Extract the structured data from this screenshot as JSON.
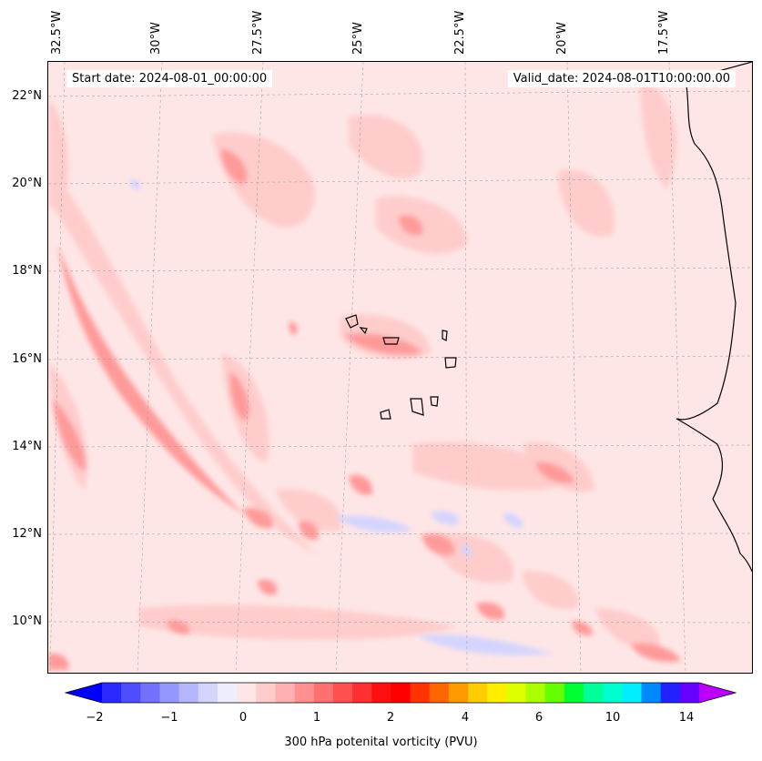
{
  "header": {
    "start_date": "Start date: 2024-08-01_00:00:00",
    "valid_date": "Valid_date: 2024-08-01T10:00:00.00"
  },
  "axes": {
    "lon_labels": [
      "32.5°W",
      "30°W",
      "27.5°W",
      "25°W",
      "22.5°W",
      "20°W",
      "17.5°W"
    ],
    "lat_labels": [
      "22°N",
      "20°N",
      "18°N",
      "16°N",
      "14°N",
      "12°N",
      "10°N"
    ]
  },
  "colorbar": {
    "label": "300 hPa potenital vorticity (PVU)",
    "ticks": [
      "−2",
      "−1",
      "0",
      "1",
      "2",
      "4",
      "6",
      "10",
      "14"
    ],
    "colors": [
      "#0000ff",
      "#2a2aff",
      "#4e4eff",
      "#7272ff",
      "#9696ff",
      "#b6b6ff",
      "#d4d4ff",
      "#eeeeff",
      "#ffe6e6",
      "#ffcccc",
      "#ffb0b0",
      "#ff9090",
      "#ff7070",
      "#ff5050",
      "#ff3030",
      "#ff1010",
      "#ff0000",
      "#ff3300",
      "#ff6600",
      "#ff9900",
      "#ffcc00",
      "#ffee00",
      "#ddff00",
      "#aaff00",
      "#66ff00",
      "#00ff33",
      "#00ff99",
      "#00ffcc",
      "#00eeff",
      "#0088ff",
      "#2222ff",
      "#6600ff",
      "#bb00ff"
    ],
    "extend": "both"
  },
  "map": {
    "background_color": "#ffe6e6",
    "gridlines": "dashed"
  }
}
